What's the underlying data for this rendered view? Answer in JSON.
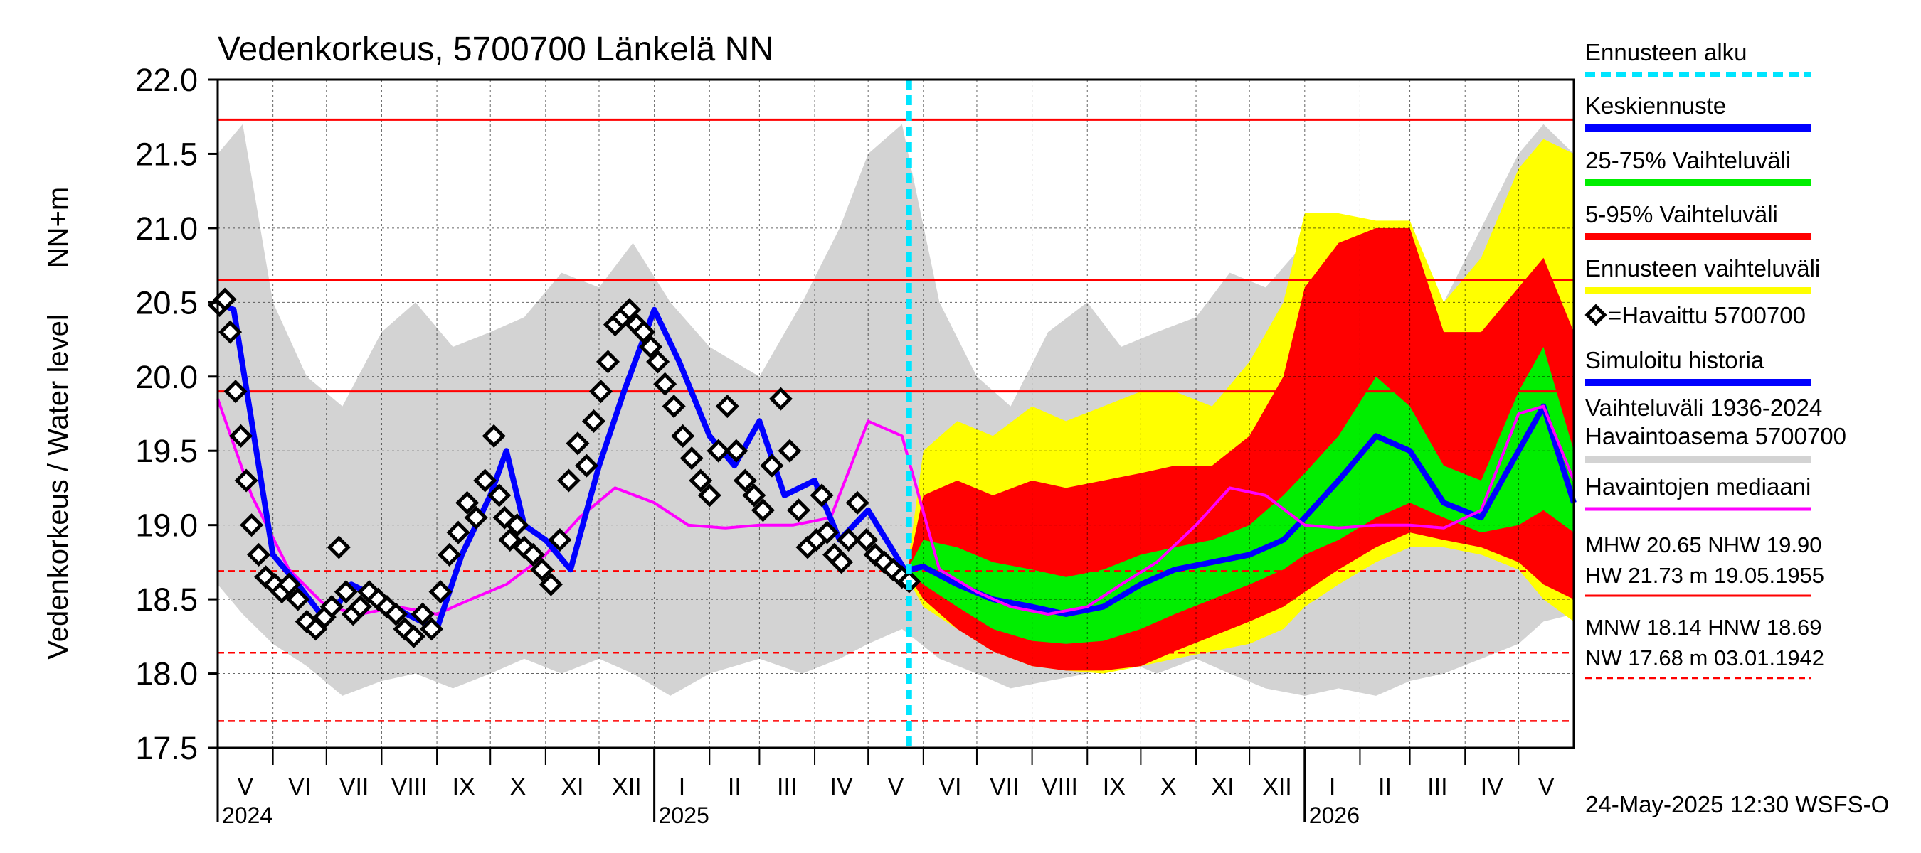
{
  "chart_data": {
    "type": "area",
    "title": "Vedenkorkeus, 5700700 Länkelä NN",
    "ylabel_top": "NN+m",
    "ylabel": "Vedenkorkeus / Water level",
    "ylim": [
      17.5,
      22.0
    ],
    "yticks": [
      "17.5",
      "18.0",
      "18.5",
      "19.0",
      "19.5",
      "20.0",
      "20.5",
      "21.0",
      "21.5",
      "22.0"
    ],
    "x_range": [
      "2024-05-01",
      "2026-06-01"
    ],
    "forecast_start": "2025-05-24",
    "months": [
      {
        "label": "V",
        "start": "2024-05-01"
      },
      {
        "label": "VI",
        "start": "2024-06-01"
      },
      {
        "label": "VII",
        "start": "2024-07-01"
      },
      {
        "label": "VIII",
        "start": "2024-08-01"
      },
      {
        "label": "IX",
        "start": "2024-09-01"
      },
      {
        "label": "X",
        "start": "2024-10-01"
      },
      {
        "label": "XI",
        "start": "2024-11-01"
      },
      {
        "label": "XII",
        "start": "2024-12-01"
      },
      {
        "label": "I",
        "start": "2025-01-01"
      },
      {
        "label": "II",
        "start": "2025-02-01"
      },
      {
        "label": "III",
        "start": "2025-03-01"
      },
      {
        "label": "IV",
        "start": "2025-04-01"
      },
      {
        "label": "V",
        "start": "2025-05-01"
      },
      {
        "label": "VI",
        "start": "2025-06-01"
      },
      {
        "label": "VII",
        "start": "2025-07-01"
      },
      {
        "label": "VIII",
        "start": "2025-08-01"
      },
      {
        "label": "IX",
        "start": "2025-09-01"
      },
      {
        "label": "X",
        "start": "2025-10-01"
      },
      {
        "label": "XI",
        "start": "2025-11-01"
      },
      {
        "label": "XII",
        "start": "2025-12-01"
      },
      {
        "label": "I",
        "start": "2026-01-01"
      },
      {
        "label": "II",
        "start": "2026-02-01"
      },
      {
        "label": "III",
        "start": "2026-03-01"
      },
      {
        "label": "IV",
        "start": "2026-04-01"
      },
      {
        "label": "V",
        "start": "2026-05-01"
      }
    ],
    "years": [
      {
        "label": "2024",
        "start": "2024-05-01"
      },
      {
        "label": "2025",
        "start": "2025-01-01"
      },
      {
        "label": "2026",
        "start": "2026-01-01"
      }
    ],
    "reference_lines": [
      {
        "name": "HW",
        "value": 21.73,
        "style": "solid"
      },
      {
        "name": "MHW",
        "value": 20.65,
        "style": "solid"
      },
      {
        "name": "NHW",
        "value": 19.9,
        "style": "solid"
      },
      {
        "name": "HNW",
        "value": 18.69,
        "style": "dashed"
      },
      {
        "name": "MNW",
        "value": 18.14,
        "style": "dashed"
      },
      {
        "name": "NW",
        "value": 17.68,
        "style": "dashed"
      }
    ],
    "series": [
      {
        "name": "Vaihteluväli 1936-2024 Havaintoasema 5700700",
        "kind": "band",
        "color": "#d3d3d3",
        "x": [
          "2024-05-01",
          "2024-05-15",
          "2024-06-01",
          "2024-06-20",
          "2024-07-10",
          "2024-08-01",
          "2024-08-20",
          "2024-09-10",
          "2024-10-01",
          "2024-10-20",
          "2024-11-10",
          "2024-12-01",
          "2024-12-20",
          "2025-01-10",
          "2025-02-01",
          "2025-03-01",
          "2025-03-25",
          "2025-04-15",
          "2025-05-01",
          "2025-05-20",
          "2025-06-10",
          "2025-07-01",
          "2025-07-20",
          "2025-08-10",
          "2025-09-01",
          "2025-09-20",
          "2025-10-10",
          "2025-11-01",
          "2025-11-20",
          "2025-12-10",
          "2026-01-01",
          "2026-01-20",
          "2026-02-10",
          "2026-03-01",
          "2026-03-20",
          "2026-04-10",
          "2026-05-01",
          "2026-05-15",
          "2026-06-01"
        ],
        "lower": [
          18.6,
          18.4,
          18.2,
          18.05,
          17.85,
          17.95,
          18.0,
          17.9,
          18.0,
          18.1,
          18.0,
          18.1,
          18.0,
          17.85,
          18.0,
          18.1,
          18.0,
          18.1,
          18.2,
          18.3,
          18.1,
          18.0,
          17.9,
          17.95,
          18.0,
          18.1,
          18.0,
          18.1,
          18.0,
          17.9,
          17.85,
          17.9,
          17.85,
          17.95,
          18.0,
          18.1,
          18.2,
          18.35,
          18.4
        ],
        "upper": [
          21.5,
          21.7,
          20.5,
          20.0,
          19.8,
          20.3,
          20.5,
          20.2,
          20.3,
          20.4,
          20.7,
          20.6,
          20.9,
          20.5,
          20.2,
          20.0,
          20.5,
          21.0,
          21.5,
          21.7,
          20.5,
          20.0,
          19.8,
          20.3,
          20.5,
          20.2,
          20.3,
          20.4,
          20.7,
          20.6,
          20.9,
          20.5,
          20.2,
          20.0,
          20.5,
          21.0,
          21.5,
          21.7,
          21.5
        ]
      },
      {
        "name": "Ennusteen vaihteluväli",
        "kind": "band",
        "color": "#ffff00",
        "x": [
          "2025-05-24",
          "2025-06-01",
          "2025-06-20",
          "2025-07-10",
          "2025-08-01",
          "2025-08-20",
          "2025-09-10",
          "2025-10-01",
          "2025-10-20",
          "2025-11-10",
          "2025-12-01",
          "2025-12-20",
          "2026-01-01",
          "2026-01-20",
          "2026-02-10",
          "2026-03-01",
          "2026-03-20",
          "2026-04-10",
          "2026-05-01",
          "2026-05-15",
          "2026-06-01"
        ],
        "lower": [
          18.62,
          18.45,
          18.3,
          18.15,
          18.05,
          18.02,
          18.0,
          18.05,
          18.1,
          18.15,
          18.2,
          18.3,
          18.45,
          18.6,
          18.75,
          18.85,
          18.85,
          18.8,
          18.7,
          18.5,
          18.35
        ],
        "upper": [
          18.8,
          19.5,
          19.7,
          19.6,
          19.8,
          19.7,
          19.8,
          19.9,
          19.9,
          19.8,
          20.1,
          20.5,
          21.1,
          21.1,
          21.05,
          21.05,
          20.5,
          20.8,
          21.4,
          21.6,
          21.5
        ]
      },
      {
        "name": "5-95% Vaihteluväli",
        "kind": "band",
        "color": "#ff0000",
        "x": [
          "2025-05-24",
          "2025-06-01",
          "2025-06-20",
          "2025-07-10",
          "2025-08-01",
          "2025-08-20",
          "2025-09-10",
          "2025-10-01",
          "2025-10-20",
          "2025-11-10",
          "2025-12-01",
          "2025-12-20",
          "2026-01-01",
          "2026-01-20",
          "2026-02-10",
          "2026-03-01",
          "2026-03-20",
          "2026-04-10",
          "2026-05-01",
          "2026-05-15",
          "2026-06-01"
        ],
        "lower": [
          18.65,
          18.5,
          18.3,
          18.15,
          18.05,
          18.02,
          18.02,
          18.05,
          18.15,
          18.25,
          18.35,
          18.45,
          18.55,
          18.7,
          18.85,
          18.95,
          18.9,
          18.85,
          18.75,
          18.6,
          18.5
        ],
        "upper": [
          18.75,
          19.2,
          19.3,
          19.2,
          19.3,
          19.25,
          19.3,
          19.35,
          19.4,
          19.4,
          19.6,
          20.0,
          20.6,
          20.9,
          21.0,
          21.0,
          20.3,
          20.3,
          20.6,
          20.8,
          20.3
        ]
      },
      {
        "name": "25-75% Vaihteluväli",
        "kind": "band",
        "color": "#00ee00",
        "x": [
          "2025-05-24",
          "2025-06-01",
          "2025-06-20",
          "2025-07-10",
          "2025-08-01",
          "2025-08-20",
          "2025-09-10",
          "2025-10-01",
          "2025-10-20",
          "2025-11-10",
          "2025-12-01",
          "2025-12-20",
          "2026-01-01",
          "2026-01-20",
          "2026-02-10",
          "2026-03-01",
          "2026-03-20",
          "2026-04-10",
          "2026-05-01",
          "2026-05-15",
          "2026-06-01"
        ],
        "lower": [
          18.68,
          18.6,
          18.45,
          18.3,
          18.22,
          18.2,
          18.22,
          18.3,
          18.4,
          18.5,
          18.6,
          18.7,
          18.8,
          18.9,
          19.05,
          19.15,
          19.05,
          18.95,
          19.0,
          19.1,
          18.95
        ],
        "upper": [
          18.72,
          18.9,
          18.85,
          18.75,
          18.7,
          18.65,
          18.7,
          18.8,
          18.85,
          18.9,
          19.0,
          19.2,
          19.35,
          19.6,
          20.0,
          19.8,
          19.4,
          19.3,
          19.9,
          20.2,
          19.5
        ]
      },
      {
        "name": "Keskiennuste",
        "kind": "line",
        "color": "#0000ff",
        "x": [
          "2025-05-24",
          "2025-06-01",
          "2025-06-20",
          "2025-07-10",
          "2025-08-01",
          "2025-08-20",
          "2025-09-10",
          "2025-10-01",
          "2025-10-20",
          "2025-11-10",
          "2025-12-01",
          "2025-12-20",
          "2026-01-01",
          "2026-01-20",
          "2026-02-10",
          "2026-03-01",
          "2026-03-20",
          "2026-04-10",
          "2026-05-01",
          "2026-05-15",
          "2026-06-01"
        ],
        "y": [
          18.7,
          18.72,
          18.6,
          18.5,
          18.45,
          18.4,
          18.45,
          18.6,
          18.7,
          18.75,
          18.8,
          18.9,
          19.05,
          19.3,
          19.6,
          19.5,
          19.15,
          19.05,
          19.5,
          19.8,
          19.15
        ]
      },
      {
        "name": "Havaintojen mediaani",
        "kind": "line",
        "color": "#ff00ff",
        "x": [
          "2024-05-01",
          "2024-05-20",
          "2024-06-10",
          "2024-07-01",
          "2024-07-20",
          "2024-08-10",
          "2024-09-01",
          "2024-09-20",
          "2024-10-10",
          "2024-11-01",
          "2024-11-20",
          "2024-12-10",
          "2025-01-01",
          "2025-01-20",
          "2025-02-10",
          "2025-03-01",
          "2025-03-20",
          "2025-04-10",
          "2025-05-01",
          "2025-05-20",
          "2025-06-10",
          "2025-07-01",
          "2025-07-20",
          "2025-08-10",
          "2025-09-01",
          "2025-09-20",
          "2025-10-10",
          "2025-11-01",
          "2025-11-20",
          "2025-12-10",
          "2026-01-01",
          "2026-01-20",
          "2026-02-10",
          "2026-03-01",
          "2026-03-20",
          "2026-04-10",
          "2026-05-01",
          "2026-05-15",
          "2026-06-01"
        ],
        "y": [
          19.85,
          19.2,
          18.7,
          18.45,
          18.4,
          18.45,
          18.4,
          18.5,
          18.6,
          18.8,
          19.05,
          19.25,
          19.15,
          19.0,
          18.98,
          19.0,
          19.0,
          19.05,
          19.7,
          19.6,
          18.7,
          18.55,
          18.45,
          18.4,
          18.45,
          18.6,
          18.75,
          19.0,
          19.25,
          19.2,
          19.0,
          18.98,
          19.0,
          19.0,
          18.98,
          19.1,
          19.75,
          19.8,
          19.3
        ]
      },
      {
        "name": "Simuloitu historia",
        "kind": "line",
        "color": "#0000ff",
        "x": [
          "2024-05-01",
          "2024-05-10",
          "2024-05-20",
          "2024-06-01",
          "2024-06-15",
          "2024-07-01",
          "2024-07-15",
          "2024-08-01",
          "2024-08-15",
          "2024-09-01",
          "2024-09-15",
          "2024-10-01",
          "2024-10-10",
          "2024-10-20",
          "2024-11-01",
          "2024-11-15",
          "2024-12-01",
          "2024-12-15",
          "2025-01-01",
          "2025-01-15",
          "2025-02-01",
          "2025-02-15",
          "2025-03-01",
          "2025-03-15",
          "2025-04-01",
          "2025-04-15",
          "2025-05-01",
          "2025-05-24"
        ],
        "y": [
          20.5,
          20.45,
          19.7,
          18.8,
          18.6,
          18.35,
          18.6,
          18.5,
          18.4,
          18.3,
          18.8,
          19.2,
          19.5,
          19.0,
          18.9,
          18.7,
          19.4,
          19.9,
          20.45,
          20.1,
          19.6,
          19.4,
          19.7,
          19.2,
          19.3,
          18.9,
          19.1,
          18.65
        ]
      },
      {
        "name": "Havaittu 5700700",
        "kind": "scatter",
        "color": "#000000",
        "x": [
          "2024-05-02",
          "2024-05-05",
          "2024-05-08",
          "2024-05-11",
          "2024-05-14",
          "2024-05-17",
          "2024-05-20",
          "2024-05-24",
          "2024-05-28",
          "2024-06-02",
          "2024-06-06",
          "2024-06-10",
          "2024-06-15",
          "2024-06-20",
          "2024-06-25",
          "2024-06-30",
          "2024-07-04",
          "2024-07-08",
          "2024-07-12",
          "2024-07-16",
          "2024-07-20",
          "2024-07-25",
          "2024-07-30",
          "2024-08-04",
          "2024-08-09",
          "2024-08-14",
          "2024-08-19",
          "2024-08-24",
          "2024-08-29",
          "2024-09-03",
          "2024-09-08",
          "2024-09-13",
          "2024-09-18",
          "2024-09-23",
          "2024-09-28",
          "2024-10-03",
          "2024-10-06",
          "2024-10-09",
          "2024-10-12",
          "2024-10-16",
          "2024-10-20",
          "2024-10-25",
          "2024-10-30",
          "2024-11-04",
          "2024-11-09",
          "2024-11-14",
          "2024-11-19",
          "2024-11-24",
          "2024-11-28",
          "2024-12-02",
          "2024-12-06",
          "2024-12-10",
          "2024-12-14",
          "2024-12-18",
          "2024-12-22",
          "2024-12-26",
          "2024-12-30",
          "2025-01-03",
          "2025-01-07",
          "2025-01-12",
          "2025-01-17",
          "2025-01-22",
          "2025-01-27",
          "2025-02-01",
          "2025-02-06",
          "2025-02-11",
          "2025-02-16",
          "2025-02-21",
          "2025-02-26",
          "2025-03-03",
          "2025-03-08",
          "2025-03-13",
          "2025-03-18",
          "2025-03-23",
          "2025-03-28",
          "2025-04-02",
          "2025-04-05",
          "2025-04-08",
          "2025-04-12",
          "2025-04-16",
          "2025-04-20",
          "2025-04-25",
          "2025-04-30",
          "2025-05-05",
          "2025-05-10",
          "2025-05-15",
          "2025-05-20",
          "2025-05-24"
        ],
        "y": [
          20.48,
          20.52,
          20.3,
          19.9,
          19.6,
          19.3,
          19.0,
          18.8,
          18.65,
          18.6,
          18.55,
          18.6,
          18.5,
          18.35,
          18.3,
          18.38,
          18.45,
          18.85,
          18.55,
          18.4,
          18.45,
          18.55,
          18.5,
          18.45,
          18.4,
          18.3,
          18.25,
          18.4,
          18.3,
          18.55,
          18.8,
          18.95,
          19.15,
          19.05,
          19.3,
          19.6,
          19.2,
          19.05,
          18.9,
          19.0,
          18.85,
          18.8,
          18.7,
          18.6,
          18.9,
          19.3,
          19.55,
          19.4,
          19.7,
          19.9,
          20.1,
          20.35,
          20.4,
          20.45,
          20.35,
          20.3,
          20.2,
          20.1,
          19.95,
          19.8,
          19.6,
          19.45,
          19.3,
          19.2,
          19.5,
          19.8,
          19.5,
          19.3,
          19.2,
          19.1,
          19.4,
          19.85,
          19.5,
          19.1,
          18.85,
          18.9,
          19.2,
          18.95,
          18.8,
          18.75,
          18.9,
          19.15,
          18.9,
          18.8,
          18.75,
          18.7,
          18.65,
          18.62
        ]
      }
    ],
    "legend": [
      {
        "label": "Ennusteen alku",
        "color": "#00e5ff",
        "style": "dotted"
      },
      {
        "label": "Keskiennuste",
        "color": "#0000ff",
        "style": "solid"
      },
      {
        "label": "25-75% Vaihteluväli",
        "color": "#00ee00",
        "style": "solid"
      },
      {
        "label": "5-95% Vaihteluväli",
        "color": "#ff0000",
        "style": "solid"
      },
      {
        "label": "Ennusteen vaihteluväli",
        "color": "#ffff00",
        "style": "solid"
      },
      {
        "label": "=Havaittu 5700700",
        "color": "#000000",
        "style": "marker"
      },
      {
        "label": "Simuloitu historia",
        "color": "#0000ff",
        "style": "solid"
      },
      {
        "label": "Vaihteluväli 1936-2024",
        "label2": " Havaintoasema 5700700",
        "color": "#d3d3d3",
        "style": "solid"
      },
      {
        "label": "Havaintojen mediaani",
        "color": "#ff00ff",
        "style": "solid"
      }
    ],
    "stats": {
      "line1": "MHW  20.65 NHW  19.90",
      "line2": "HW  21.73 m 19.05.1955",
      "line3": "MNW  18.14 HNW  18.69",
      "line4": "NW  17.68 m 03.01.1942"
    },
    "footer": "24-May-2025 12:30 WSFS-O"
  }
}
